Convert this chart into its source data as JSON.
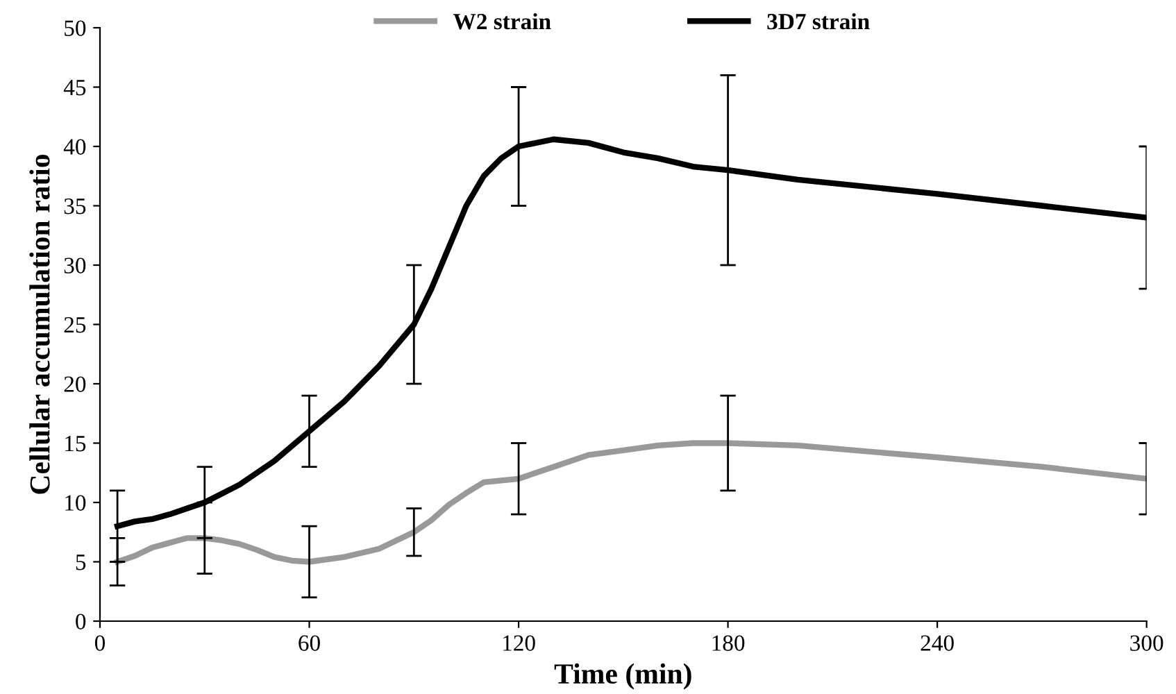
{
  "chart_data": {
    "type": "line",
    "xlabel": "Time (min)",
    "ylabel": "Cellular accumulation ratio",
    "series": [
      {
        "name": "W2 strain",
        "color": "#999999",
        "x": [
          5,
          10,
          15,
          20,
          25,
          30,
          35,
          40,
          45,
          50,
          55,
          60,
          70,
          80,
          90,
          95,
          100,
          105,
          110,
          120,
          130,
          140,
          150,
          160,
          170,
          180,
          200,
          240,
          270,
          300
        ],
        "values": [
          5,
          5.5,
          6.2,
          6.6,
          7,
          7,
          6.8,
          6.5,
          6,
          5.4,
          5.1,
          5,
          5.4,
          6.1,
          7.5,
          8.5,
          9.8,
          10.8,
          11.7,
          12,
          13,
          14,
          14.4,
          14.8,
          15,
          15,
          14.8,
          13.8,
          13,
          12
        ],
        "errors": [
          2,
          null,
          null,
          null,
          null,
          3,
          null,
          null,
          null,
          null,
          null,
          3,
          null,
          null,
          2,
          null,
          null,
          null,
          null,
          3,
          null,
          null,
          null,
          null,
          null,
          4,
          null,
          null,
          null,
          3
        ]
      },
      {
        "name": "3D7 strain",
        "color": "#000000",
        "x": [
          5,
          10,
          15,
          20,
          25,
          30,
          40,
          50,
          60,
          70,
          80,
          90,
          95,
          100,
          105,
          110,
          115,
          120,
          130,
          140,
          150,
          160,
          170,
          180,
          200,
          240,
          270,
          300
        ],
        "values": [
          8,
          8.4,
          8.6,
          9,
          9.5,
          10,
          11.5,
          13.5,
          16,
          18.5,
          21.5,
          25,
          28,
          31.5,
          35,
          37.5,
          39,
          40,
          40.6,
          40.3,
          39.5,
          39,
          38.3,
          38,
          37.2,
          36,
          35,
          34
        ],
        "errors": [
          3,
          null,
          null,
          null,
          null,
          3,
          null,
          null,
          3,
          null,
          null,
          5,
          null,
          null,
          null,
          null,
          null,
          5,
          null,
          null,
          null,
          null,
          null,
          8,
          null,
          null,
          null,
          6
        ]
      }
    ],
    "xlim": [
      0,
      300
    ],
    "xticks": [
      0,
      60,
      120,
      180,
      240,
      300
    ],
    "ylim": [
      0,
      50
    ],
    "yticks": [
      0,
      5,
      10,
      15,
      20,
      25,
      30,
      35,
      40,
      45,
      50
    ],
    "grid": false,
    "legend": "top",
    "marker": "none",
    "line_style": "solid"
  }
}
